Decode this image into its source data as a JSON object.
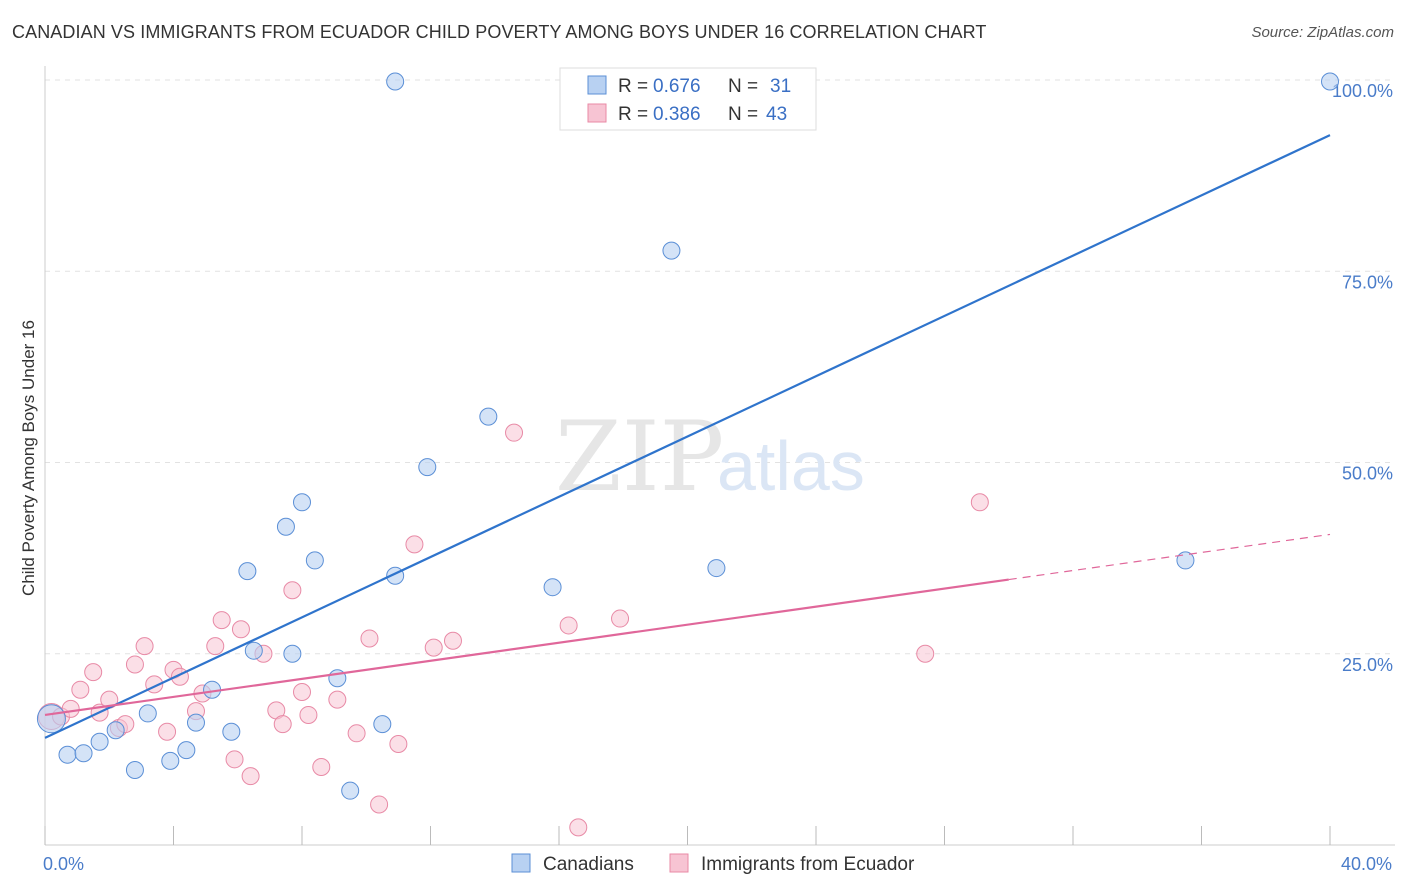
{
  "title": "CANADIAN VS IMMIGRANTS FROM ECUADOR CHILD POVERTY AMONG BOYS UNDER 16 CORRELATION CHART",
  "source": "Source: ZipAtlas.com",
  "watermark": {
    "zip": "ZIP",
    "atlas": "atlas"
  },
  "legend": {
    "r_label": "R =",
    "n_label": "N =",
    "rows": [
      {
        "r": "0.676",
        "n": "31"
      },
      {
        "r": "0.386",
        "n": "43"
      }
    ]
  },
  "colors": {
    "blue_fill": "#b8d1f2",
    "blue_stroke": "#5b8fd6",
    "blue_line": "#2f74cc",
    "pink_fill": "#f7c4d3",
    "pink_stroke": "#e88aa6",
    "pink_line": "#e0679a",
    "tick_color": "#4a7cc9",
    "grid": "#e2e2e2"
  },
  "chart_data": {
    "type": "scatter",
    "xlabel": "",
    "ylabel": "Child Poverty Among Boys Under 16",
    "xlim": [
      0,
      40
    ],
    "ylim": [
      0,
      100
    ],
    "x_tick_labels": [
      {
        "v": 0,
        "t": "0.0%"
      },
      {
        "v": 40,
        "t": "40.0%"
      }
    ],
    "y_tick_labels": [
      {
        "v": 25,
        "t": "25.0%"
      },
      {
        "v": 50,
        "t": "50.0%"
      },
      {
        "v": 75,
        "t": "75.0%"
      },
      {
        "v": 100,
        "t": "100.0%"
      }
    ],
    "grid": true,
    "series": [
      {
        "name": "Canadians",
        "color": "blue",
        "points": [
          [
            0.2,
            16.5
          ],
          [
            0.7,
            11.8
          ],
          [
            1.2,
            12.0
          ],
          [
            1.7,
            13.5
          ],
          [
            2.2,
            15.0
          ],
          [
            2.8,
            9.8
          ],
          [
            3.2,
            17.2
          ],
          [
            3.9,
            11.0
          ],
          [
            4.7,
            16.0
          ],
          [
            4.4,
            12.4
          ],
          [
            5.2,
            20.3
          ],
          [
            5.8,
            14.8
          ],
          [
            6.3,
            35.8
          ],
          [
            6.5,
            25.4
          ],
          [
            7.5,
            41.6
          ],
          [
            7.7,
            25.0
          ],
          [
            8.0,
            44.8
          ],
          [
            8.4,
            37.2
          ],
          [
            9.1,
            21.8
          ],
          [
            9.5,
            7.1
          ],
          [
            10.5,
            15.8
          ],
          [
            10.9,
            35.2
          ],
          [
            11.9,
            49.4
          ],
          [
            13.8,
            56.0
          ],
          [
            15.8,
            33.7
          ],
          [
            19.5,
            77.7
          ],
          [
            20.9,
            36.2
          ],
          [
            21.1,
            99.8
          ],
          [
            35.5,
            37.2
          ],
          [
            40.0,
            99.8
          ],
          [
            10.9,
            99.8
          ]
        ]
      },
      {
        "name": "Immigrants from Ecuador",
        "color": "pink",
        "points": [
          [
            0.2,
            16.8
          ],
          [
            0.5,
            16.8
          ],
          [
            0.8,
            17.8
          ],
          [
            1.1,
            20.3
          ],
          [
            1.5,
            22.6
          ],
          [
            1.7,
            17.3
          ],
          [
            2.0,
            19.0
          ],
          [
            2.3,
            15.3
          ],
          [
            2.5,
            15.8
          ],
          [
            2.8,
            23.6
          ],
          [
            3.1,
            26.0
          ],
          [
            3.4,
            21.0
          ],
          [
            3.8,
            14.8
          ],
          [
            4.0,
            22.9
          ],
          [
            4.2,
            22.0
          ],
          [
            4.7,
            17.5
          ],
          [
            4.9,
            19.8
          ],
          [
            5.3,
            26.0
          ],
          [
            5.5,
            29.4
          ],
          [
            5.9,
            11.2
          ],
          [
            6.1,
            28.2
          ],
          [
            6.4,
            9.0
          ],
          [
            6.8,
            25.0
          ],
          [
            7.2,
            17.6
          ],
          [
            7.4,
            15.8
          ],
          [
            7.7,
            33.3
          ],
          [
            8.0,
            20.0
          ],
          [
            8.2,
            17.0
          ],
          [
            8.6,
            10.2
          ],
          [
            9.1,
            19.0
          ],
          [
            9.7,
            14.6
          ],
          [
            10.1,
            27.0
          ],
          [
            10.4,
            5.3
          ],
          [
            11.0,
            13.2
          ],
          [
            11.5,
            39.3
          ],
          [
            12.1,
            25.8
          ],
          [
            12.7,
            26.7
          ],
          [
            14.6,
            53.9
          ],
          [
            16.3,
            28.7
          ],
          [
            16.6,
            2.3
          ],
          [
            17.9,
            29.6
          ],
          [
            27.4,
            25.0
          ],
          [
            29.1,
            44.8
          ]
        ]
      }
    ],
    "trend_lines": [
      {
        "series": "Canadians",
        "x": [
          0,
          40
        ],
        "y": [
          14.0,
          92.8
        ]
      },
      {
        "series": "Immigrants from Ecuador",
        "x": [
          0,
          30
        ],
        "y": [
          17.0,
          34.7
        ],
        "dashed_extension_to": [
          40,
          40.6
        ]
      }
    ]
  }
}
